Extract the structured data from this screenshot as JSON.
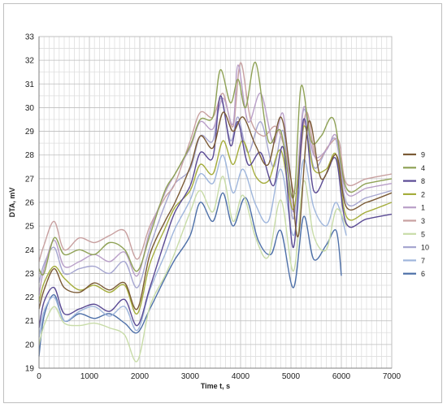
{
  "chart_data": {
    "type": "line",
    "xlabel": "Time t, s",
    "ylabel": "DTA, mV",
    "xlim": [
      0,
      7000
    ],
    "ylim": [
      19,
      33
    ],
    "xticks": [
      0,
      1000,
      2000,
      3000,
      4000,
      5000,
      6000,
      7000
    ],
    "yticks": [
      19,
      20,
      21,
      22,
      23,
      24,
      25,
      26,
      27,
      28,
      29,
      30,
      31,
      32,
      33
    ],
    "grid": true,
    "legend_position": "right",
    "series": [
      {
        "name": "9",
        "color": "#7a5a35",
        "x": [
          0,
          100,
          300,
          500,
          800,
          1100,
          1400,
          1700,
          1950,
          2200,
          2500,
          2700,
          3000,
          3200,
          3450,
          3650,
          3850,
          4050,
          4300,
          4550,
          4800,
          5000,
          5150,
          5350,
          5600,
          5900,
          6100,
          6500,
          7000
        ],
        "y": [
          21.5,
          22.3,
          23.2,
          22.4,
          22.2,
          22.6,
          22.3,
          22.6,
          21.5,
          23.8,
          25.2,
          26.0,
          27.5,
          28.8,
          28.3,
          29.8,
          29.0,
          29.6,
          28.4,
          27.6,
          29.6,
          27.0,
          24.6,
          29.4,
          27.0,
          28.0,
          25.8,
          26.0,
          26.4
        ]
      },
      {
        "name": "4",
        "color": "#8fa256",
        "x": [
          0,
          100,
          300,
          500,
          800,
          1100,
          1400,
          1700,
          1950,
          2200,
          2500,
          2700,
          3000,
          3200,
          3450,
          3600,
          3800,
          3950,
          4100,
          4300,
          4550,
          4800,
          5050,
          5200,
          5400,
          5600,
          5850,
          6100,
          6500,
          7000
        ],
        "y": [
          23.2,
          23.0,
          24.5,
          23.8,
          24.0,
          23.8,
          24.3,
          24.0,
          23.1,
          24.6,
          26.5,
          27.2,
          28.4,
          29.5,
          29.6,
          31.6,
          30.2,
          31.2,
          30.0,
          31.9,
          28.6,
          29.0,
          26.2,
          30.9,
          28.6,
          28.8,
          29.5,
          26.6,
          26.8,
          27.0
        ]
      },
      {
        "name": "8",
        "color": "#5a4a94",
        "x": [
          0,
          100,
          300,
          500,
          800,
          1100,
          1400,
          1700,
          1950,
          2200,
          2500,
          2700,
          3000,
          3200,
          3450,
          3600,
          3800,
          3950,
          4150,
          4400,
          4650,
          4850,
          5050,
          5250,
          5450,
          5700,
          5900,
          6100,
          6500,
          7000
        ],
        "y": [
          20.7,
          21.8,
          22.4,
          21.3,
          21.5,
          21.7,
          21.4,
          21.9,
          20.8,
          22.4,
          24.4,
          25.6,
          26.7,
          28.1,
          27.9,
          30.5,
          28.4,
          29.4,
          27.6,
          28.1,
          26.7,
          28.3,
          24.1,
          29.5,
          26.5,
          27.2,
          27.8,
          25.1,
          25.3,
          25.5
        ]
      },
      {
        "name": "2",
        "color": "#a5ad3c",
        "x": [
          0,
          100,
          300,
          500,
          800,
          1100,
          1400,
          1700,
          1950,
          2200,
          2500,
          2700,
          3000,
          3200,
          3450,
          3650,
          3850,
          4050,
          4300,
          4550,
          4800,
          5050,
          5250,
          5450,
          5700,
          5900,
          6100,
          6500,
          7000
        ],
        "y": [
          21.8,
          22.6,
          23.3,
          22.8,
          22.3,
          22.5,
          22.2,
          22.5,
          21.3,
          23.4,
          24.9,
          25.8,
          26.5,
          27.6,
          27.2,
          28.6,
          27.6,
          28.6,
          27.1,
          26.9,
          28.2,
          25.7,
          29.2,
          27.4,
          27.4,
          28.0,
          25.4,
          25.6,
          26.0
        ]
      },
      {
        "name": "1",
        "color": "#b99fc8",
        "x": [
          0,
          100,
          300,
          500,
          800,
          1100,
          1400,
          1700,
          1950,
          2200,
          2500,
          2700,
          3000,
          3200,
          3450,
          3650,
          3850,
          3950,
          4150,
          4400,
          4650,
          4850,
          5050,
          5250,
          5450,
          5700,
          5900,
          6100,
          6500,
          7000
        ],
        "y": [
          22.1,
          23.2,
          24.4,
          23.3,
          23.5,
          23.8,
          23.5,
          23.9,
          22.9,
          24.8,
          26.4,
          27.2,
          28.3,
          29.4,
          29.1,
          30.4,
          29.3,
          31.8,
          29.4,
          30.6,
          28.5,
          29.7,
          25.6,
          30.0,
          28.0,
          28.2,
          28.8,
          26.4,
          26.6,
          26.8
        ]
      },
      {
        "name": "3",
        "color": "#c8a0a0",
        "x": [
          0,
          100,
          300,
          500,
          800,
          1100,
          1400,
          1700,
          1950,
          2200,
          2500,
          2700,
          3000,
          3200,
          3450,
          3650,
          3850,
          4000,
          4200,
          4450,
          4700,
          4900,
          5100,
          5300,
          5500,
          5750,
          5950,
          6100,
          6500,
          7000
        ],
        "y": [
          23.5,
          24.2,
          25.2,
          24.0,
          24.5,
          24.3,
          24.6,
          24.8,
          23.6,
          25.0,
          26.2,
          26.8,
          28.6,
          29.8,
          29.6,
          30.6,
          29.2,
          31.9,
          29.5,
          28.8,
          29.2,
          28.1,
          26.4,
          29.8,
          27.8,
          28.4,
          28.6,
          26.8,
          27.0,
          27.2
        ]
      },
      {
        "name": "5",
        "color": "#c8dca8",
        "x": [
          0,
          100,
          300,
          500,
          800,
          1100,
          1400,
          1700,
          1950,
          2200,
          2500,
          2700,
          3000,
          3200,
          3450,
          3650,
          3850,
          4050,
          4300,
          4550,
          4800,
          5050,
          5250,
          5450,
          5700,
          5900,
          6100
        ],
        "y": [
          20.0,
          20.8,
          21.6,
          20.9,
          20.8,
          20.9,
          20.7,
          20.4,
          19.3,
          21.6,
          22.9,
          23.9,
          25.6,
          26.5,
          25.6,
          27.1,
          25.2,
          26.3,
          24.5,
          23.7,
          26.1,
          23.1,
          26.9,
          24.6,
          24.0,
          25.7,
          25.0
        ]
      },
      {
        "name": "10",
        "color": "#a6a6d0",
        "x": [
          0,
          100,
          300,
          500,
          800,
          1100,
          1400,
          1700,
          1950,
          2200,
          2500,
          2700,
          3000,
          3200,
          3450,
          3600,
          3800,
          3950,
          4150,
          4400,
          4650,
          4850,
          5050,
          5250,
          5450,
          5700,
          5900,
          6100,
          6500,
          7000
        ],
        "y": [
          22.6,
          23.4,
          24.1,
          23.0,
          23.2,
          23.3,
          23.0,
          23.5,
          22.4,
          24.1,
          25.9,
          26.8,
          27.4,
          28.8,
          28.6,
          30.4,
          28.6,
          29.6,
          28.1,
          29.4,
          27.5,
          29.0,
          25.3,
          29.9,
          27.5,
          28.2,
          28.6,
          26.0,
          26.2,
          26.5
        ]
      },
      {
        "name": "7",
        "color": "#9fb6dc",
        "x": [
          0,
          100,
          300,
          500,
          800,
          1100,
          1400,
          1700,
          1950,
          2200,
          2500,
          2700,
          3000,
          3200,
          3450,
          3650,
          3850,
          4050,
          4300,
          4550,
          4800,
          5050,
          5250,
          5450,
          5700,
          5900,
          6100
        ],
        "y": [
          20.3,
          21.4,
          22.0,
          21.0,
          21.4,
          21.6,
          21.2,
          21.6,
          20.6,
          22.3,
          23.8,
          24.9,
          26.1,
          27.2,
          26.8,
          28.0,
          26.4,
          27.4,
          25.9,
          25.2,
          27.4,
          24.6,
          27.8,
          25.8,
          25.0,
          26.0,
          24.6
        ]
      },
      {
        "name": "6",
        "color": "#4d6fa8",
        "x": [
          0,
          100,
          300,
          500,
          800,
          1100,
          1400,
          1700,
          1950,
          2200,
          2500,
          2700,
          3000,
          3200,
          3450,
          3650,
          3850,
          4100,
          4350,
          4600,
          4800,
          5050,
          5250,
          5450,
          5700,
          5900,
          6000
        ],
        "y": [
          19.5,
          21.2,
          22.1,
          21.0,
          21.3,
          21.1,
          21.3,
          20.9,
          20.5,
          21.5,
          22.8,
          23.6,
          24.6,
          26.0,
          25.2,
          26.4,
          25.0,
          26.2,
          24.4,
          23.8,
          24.8,
          22.4,
          25.4,
          23.6,
          24.2,
          24.8,
          22.9
        ]
      }
    ]
  }
}
